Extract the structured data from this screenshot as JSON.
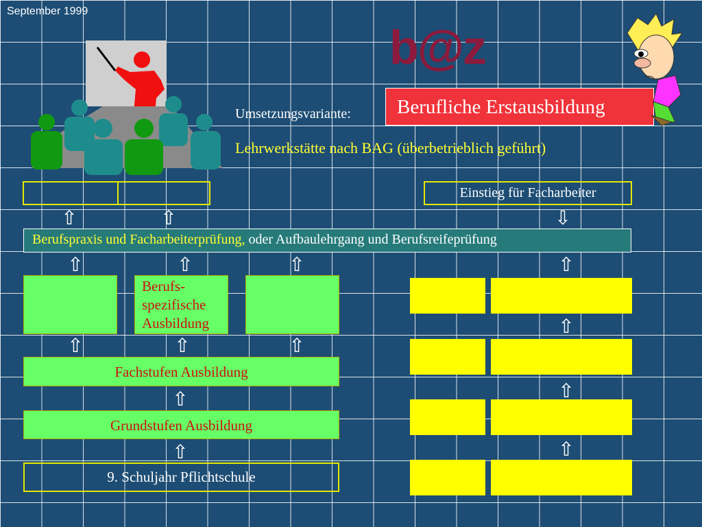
{
  "header": {
    "date": "September 1999",
    "logo": "b@z",
    "variante_label": "Umsetzungsvariante:",
    "title": "Berufliche Erstausbildung",
    "subtitle": "Lehrwerkstätte nach BAG (überbetrieblich geführt)"
  },
  "diagram": {
    "einstieg": "Einstieg für Facharbeiter",
    "berufspraxis_part1": "Berufspraxis und Facharbeiterprüfung,",
    "berufspraxis_part2": " oder Aufbaulehrgang und Berufsreifeprüfung",
    "berufsspezifische": "Berufs-spezifische Ausbildung",
    "fachstufe": "Fachstufen Ausbildung",
    "grundstufe": "Grundstufen Ausbildung",
    "schuljahr": "9. Schuljahr Pflichtschule",
    "arrow_up": "⇧",
    "arrow_down": "⇩"
  },
  "colors": {
    "background": "#1d4d74",
    "title_box": "#f0323a",
    "green_box": "#66ff66",
    "yellow_box": "#ffff00",
    "teal_bar": "#267a7a",
    "logo": "#8b1a3c"
  },
  "icons": [
    "presentation-meeting-icon",
    "cartoon-character-icon"
  ]
}
